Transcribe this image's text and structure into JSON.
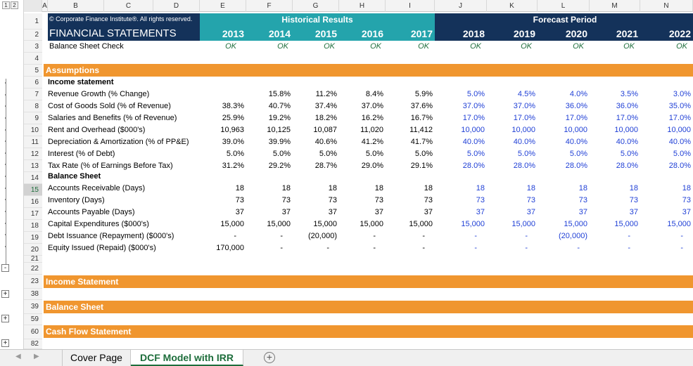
{
  "outline": {
    "levels": [
      "1",
      "2"
    ],
    "buttons": [
      "-",
      "+",
      "+",
      "+"
    ]
  },
  "columns": [
    "A",
    "B",
    "C",
    "D",
    "E",
    "F",
    "G",
    "H",
    "I",
    "J",
    "K",
    "L",
    "M",
    "N"
  ],
  "rows": [
    "1",
    "2",
    "3",
    "4",
    "5",
    "6",
    "7",
    "8",
    "9",
    "10",
    "11",
    "12",
    "13",
    "14",
    "15",
    "16",
    "17",
    "18",
    "19",
    "20",
    "21",
    "22",
    "23",
    "38",
    "39",
    "59",
    "60",
    "82"
  ],
  "header": {
    "copyright": "© Corporate Finance Institute®. All rights reserved.",
    "title": "FINANCIAL STATEMENTS",
    "historical_label": "Historical Results",
    "forecast_label": "Forecast Period",
    "balance_check_label": "Balance Sheet Check",
    "years": [
      "2013",
      "2014",
      "2015",
      "2016",
      "2017",
      "2018",
      "2019",
      "2020",
      "2021",
      "2022"
    ],
    "checks": [
      "OK",
      "OK",
      "OK",
      "OK",
      "OK",
      "OK",
      "OK",
      "OK",
      "OK",
      "OK"
    ]
  },
  "sections": {
    "assumptions": "Assumptions",
    "income_statement_sub": "Income statement",
    "balance_sheet_sub": "Balance Sheet",
    "income_statement": "Income Statement",
    "balance_sheet": "Balance Sheet",
    "cash_flow": "Cash Flow Statement"
  },
  "assumption_rows": [
    {
      "label": "Revenue Growth (% Change)",
      "values": [
        "",
        "15.8%",
        "11.2%",
        "8.4%",
        "5.9%",
        "5.0%",
        "4.5%",
        "4.0%",
        "3.5%",
        "3.0%"
      ]
    },
    {
      "label": "Cost of Goods Sold (% of Revenue)",
      "values": [
        "38.3%",
        "40.7%",
        "37.4%",
        "37.0%",
        "37.6%",
        "37.0%",
        "37.0%",
        "36.0%",
        "36.0%",
        "35.0%"
      ]
    },
    {
      "label": "Salaries and Benefits (% of Revenue)",
      "values": [
        "25.9%",
        "19.2%",
        "18.2%",
        "16.2%",
        "16.7%",
        "17.0%",
        "17.0%",
        "17.0%",
        "17.0%",
        "17.0%"
      ]
    },
    {
      "label": "Rent and Overhead ($000's)",
      "values": [
        "10,963",
        "10,125",
        "10,087",
        "11,020",
        "11,412",
        "10,000",
        "10,000",
        "10,000",
        "10,000",
        "10,000"
      ]
    },
    {
      "label": "Depreciation & Amortization (% of PP&E)",
      "values": [
        "39.0%",
        "39.9%",
        "40.6%",
        "41.2%",
        "41.7%",
        "40.0%",
        "40.0%",
        "40.0%",
        "40.0%",
        "40.0%"
      ]
    },
    {
      "label": "Interest (% of Debt)",
      "values": [
        "5.0%",
        "5.0%",
        "5.0%",
        "5.0%",
        "5.0%",
        "5.0%",
        "5.0%",
        "5.0%",
        "5.0%",
        "5.0%"
      ]
    },
    {
      "label": "Tax Rate (% of Earnings Before Tax)",
      "values": [
        "31.2%",
        "29.2%",
        "28.7%",
        "29.0%",
        "29.1%",
        "28.0%",
        "28.0%",
        "28.0%",
        "28.0%",
        "28.0%"
      ]
    }
  ],
  "balance_rows": [
    {
      "label": "Accounts Receivable (Days)",
      "values": [
        "18",
        "18",
        "18",
        "18",
        "18",
        "18",
        "18",
        "18",
        "18",
        "18"
      ]
    },
    {
      "label": "Inventory (Days)",
      "values": [
        "73",
        "73",
        "73",
        "73",
        "73",
        "73",
        "73",
        "73",
        "73",
        "73"
      ]
    },
    {
      "label": "Accounts Payable (Days)",
      "values": [
        "37",
        "37",
        "37",
        "37",
        "37",
        "37",
        "37",
        "37",
        "37",
        "37"
      ]
    },
    {
      "label": "Capital Expenditures ($000's)",
      "values": [
        "15,000",
        "15,000",
        "15,000",
        "15,000",
        "15,000",
        "15,000",
        "15,000",
        "15,000",
        "15,000",
        "15,000"
      ]
    },
    {
      "label": "Debt Issuance (Repayment) ($000's)",
      "values": [
        "-",
        "-",
        "(20,000)",
        "-",
        "-",
        "-",
        "-",
        "(20,000)",
        "-",
        "-"
      ]
    },
    {
      "label": "Equity Issued (Repaid) ($000's)",
      "values": [
        "170,000",
        "-",
        "-",
        "-",
        "-",
        "-",
        "-",
        "-",
        "-",
        "-"
      ]
    }
  ],
  "tabs": [
    {
      "label": "Cover Page",
      "active": false
    },
    {
      "label": "DCF Model with IRR",
      "active": true
    }
  ],
  "colors": {
    "dark_band": "#14325a",
    "teal_band": "#24a4ac",
    "section_orange": "#f0962f",
    "forecast_blue": "#1f3fd6",
    "ok_green": "#1e6e3c"
  }
}
